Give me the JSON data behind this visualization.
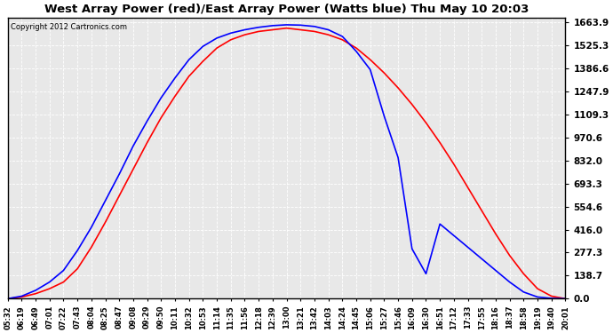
{
  "title": "West Array Power (red)/East Array Power (Watts blue) Thu May 10 20:03",
  "copyright": "Copyright 2012 Cartronics.com",
  "background_color": "#ffffff",
  "plot_bg_color": "#e8e8e8",
  "grid_color": "#ffffff",
  "yticks": [
    0.0,
    138.7,
    277.3,
    416.0,
    554.6,
    693.3,
    832.0,
    970.6,
    1109.3,
    1247.9,
    1386.6,
    1525.3,
    1663.9
  ],
  "ymax": 1663.9,
  "ymin": 0.0,
  "red_color": "#ff0000",
  "blue_color": "#0000ff",
  "x_labels": [
    "05:32",
    "06:19",
    "06:49",
    "07:01",
    "07:22",
    "07:43",
    "08:04",
    "08:25",
    "08:47",
    "09:08",
    "09:29",
    "09:50",
    "10:11",
    "10:32",
    "10:53",
    "11:14",
    "11:35",
    "11:56",
    "12:18",
    "12:39",
    "13:00",
    "13:21",
    "13:42",
    "14:03",
    "14:24",
    "14:45",
    "15:06",
    "15:27",
    "15:46",
    "16:09",
    "16:30",
    "16:51",
    "17:12",
    "17:33",
    "17:55",
    "18:16",
    "18:37",
    "18:58",
    "19:19",
    "19:40",
    "20:01"
  ],
  "red_y": [
    0,
    10,
    30,
    60,
    100,
    180,
    310,
    460,
    620,
    780,
    940,
    1090,
    1220,
    1340,
    1430,
    1510,
    1560,
    1590,
    1610,
    1620,
    1630,
    1620,
    1610,
    1590,
    1560,
    1510,
    1440,
    1360,
    1270,
    1170,
    1060,
    940,
    810,
    670,
    530,
    390,
    260,
    150,
    60,
    15,
    0
  ],
  "blue_y": [
    0,
    15,
    50,
    100,
    170,
    290,
    430,
    590,
    750,
    920,
    1070,
    1210,
    1330,
    1440,
    1520,
    1570,
    1600,
    1620,
    1635,
    1645,
    1650,
    1648,
    1640,
    1620,
    1580,
    1490,
    1380,
    1100,
    850,
    300,
    150,
    450,
    380,
    310,
    240,
    170,
    100,
    40,
    10,
    2,
    0
  ]
}
